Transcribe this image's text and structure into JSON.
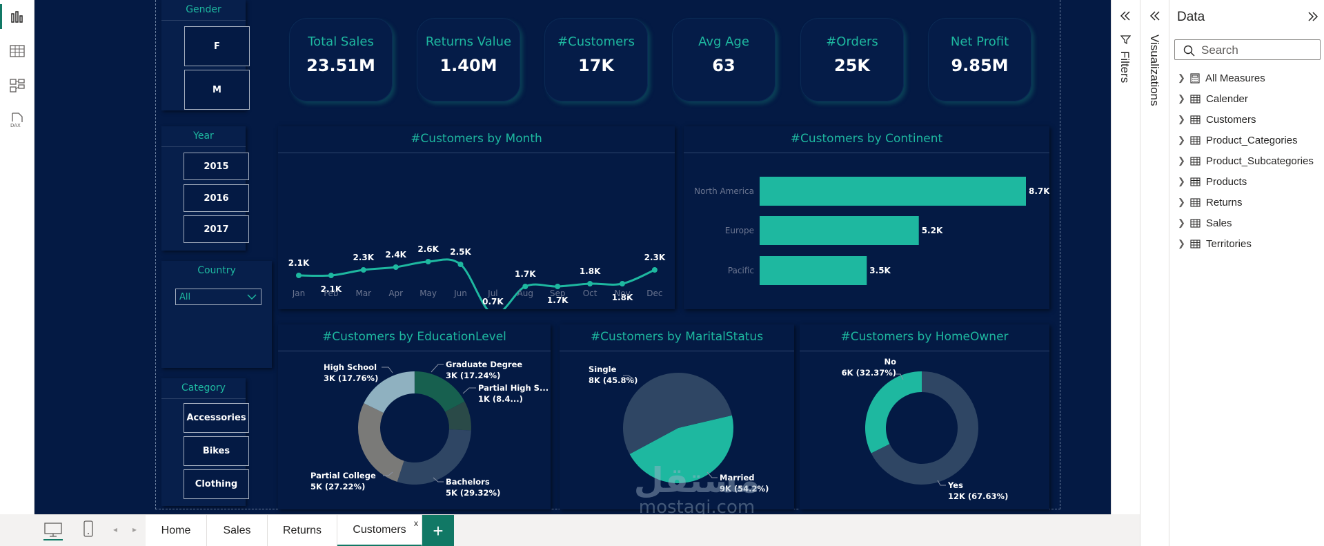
{
  "kpis": [
    {
      "label": "Total Sales",
      "value": "23.51M"
    },
    {
      "label": "Returns Value",
      "value": "1.40M"
    },
    {
      "label": "#Customers",
      "value": "17K"
    },
    {
      "label": "Avg Age",
      "value": "63"
    },
    {
      "label": "#Orders",
      "value": "25K"
    },
    {
      "label": "Net Profit",
      "value": "9.85M"
    }
  ],
  "slicers": {
    "gender": {
      "title": "Gender",
      "options": [
        "F",
        "M"
      ]
    },
    "year": {
      "title": "Year",
      "options": [
        "2015",
        "2016",
        "2017"
      ]
    },
    "country": {
      "title": "Country",
      "selected": "All"
    },
    "category": {
      "title": "Category",
      "options": [
        "Accessories",
        "Bikes",
        "Clothing"
      ]
    }
  },
  "colors": {
    "accent": "#1eb8a0",
    "canvas": "#041a44",
    "slate": "#2f4664",
    "grey": "#7a7a78",
    "lightblue": "#8fb1c0",
    "darkgreen": "#17604f",
    "pbi_green": "#117865"
  },
  "chart_data": [
    {
      "type": "line",
      "title": "#Customers by Month",
      "categories": [
        "Jan",
        "Feb",
        "Mar",
        "Apr",
        "May",
        "Jun",
        "Jul",
        "Aug",
        "Sep",
        "Oct",
        "Nov",
        "Dec"
      ],
      "values": [
        2.1,
        2.1,
        2.3,
        2.4,
        2.6,
        2.5,
        0.7,
        1.7,
        1.7,
        1.8,
        1.8,
        2.3
      ],
      "labels": [
        "2.1K",
        "2.1K",
        "2.3K",
        "2.4K",
        "2.6K",
        "2.5K",
        "0.7K",
        "1.7K",
        "1.7K",
        "1.8K",
        "1.8K",
        "2.3K"
      ],
      "unit": "K"
    },
    {
      "type": "bar",
      "title": "#Customers by Continent",
      "categories": [
        "North America",
        "Europe",
        "Pacific"
      ],
      "values": [
        8.7,
        5.2,
        3.5
      ],
      "labels": [
        "8.7K",
        "5.2K",
        "3.5K"
      ]
    },
    {
      "type": "pie",
      "title": "#Customers by EducationLevel",
      "slices": [
        {
          "name": "Graduate Degree",
          "label": "3K (17.24%)",
          "percent": 17.24
        },
        {
          "name": "Partial High S...",
          "label": "1K (8.4...)",
          "percent": 8.43
        },
        {
          "name": "Bachelors",
          "label": "5K (29.32%)",
          "percent": 29.32
        },
        {
          "name": "Partial College",
          "label": "5K (27.22%)",
          "percent": 27.22
        },
        {
          "name": "High School",
          "label": "3K (17.76%)",
          "percent": 17.76
        }
      ]
    },
    {
      "type": "pie",
      "title": "#Customers by MaritalStatus",
      "slices": [
        {
          "name": "Single",
          "label": "8K (45.8%)",
          "percent": 45.8
        },
        {
          "name": "Married",
          "label": "9K (54.2%)",
          "percent": 54.2
        }
      ]
    },
    {
      "type": "pie",
      "title": "#Customers by HomeOwner",
      "slices": [
        {
          "name": "No",
          "label": "6K (32.37%)",
          "percent": 32.37
        },
        {
          "name": "Yes",
          "label": "12K (67.63%)",
          "percent": 67.63
        }
      ]
    }
  ],
  "panes": {
    "filters_label": "Filters",
    "visualizations_label": "Visualizations",
    "data_title": "Data",
    "search_placeholder": "Search",
    "fields": [
      "All Measures",
      "Calender",
      "Customers",
      "Product_Categories",
      "Product_Subcategories",
      "Products",
      "Returns",
      "Sales",
      "Territories"
    ]
  },
  "pages": {
    "tabs": [
      "Home",
      "Sales",
      "Returns",
      "Customers"
    ],
    "active": "Customers",
    "close": "x",
    "add": "+"
  },
  "watermark": {
    "arabic": "مستقل",
    "latin": "mostaqi.com"
  }
}
